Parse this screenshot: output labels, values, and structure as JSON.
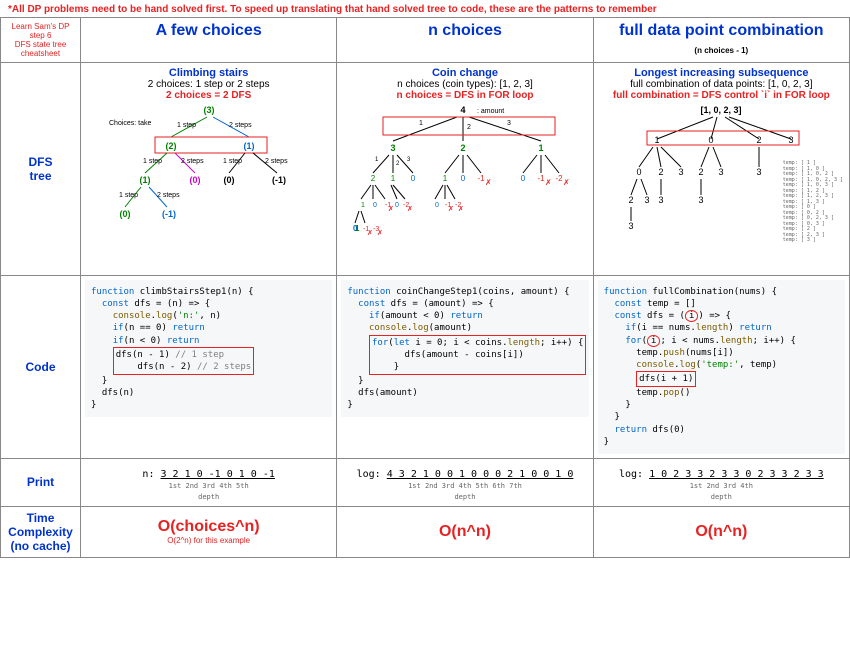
{
  "banner": "*All DP problems need to be hand solved first. To speed up translating that hand solved tree to code, these are the patterns to remember",
  "corner": "Learn Sam's DP step 6\nDFS state tree cheatsheet",
  "columns": [
    {
      "head": "A few choices",
      "sub": ""
    },
    {
      "head": "n choices",
      "sub": ""
    },
    {
      "head": "full data point combination",
      "sub": "(n choices - 1)"
    }
  ],
  "rows": {
    "dfs": "DFS\ntree",
    "code": "Code",
    "print": "Print",
    "tc": "Time\nComplexity\n(no cache)"
  },
  "problems": {
    "few": {
      "title": "Climbing stairs",
      "sub": "2 choices: 1 step or 2 steps",
      "rule": "2 choices = 2 DFS",
      "root": "(3)",
      "choices_label": "Choices: take",
      "edge_labels": [
        "1 step",
        "2 steps"
      ],
      "tree_colors": {
        "ok": "#008000",
        "fail": "#0066cc",
        "alt": "#cc00cc"
      },
      "code": "function climbStairsStep1(n) {\n  const dfs = (n) => {\n    console.log('n:', n)\n    if(n == 0) return\n    if(n < 0) return\n    [BOX]dfs(n - 1) // 1 step\n    dfs(n - 2) // 2 steps[/BOX]\n  }\n  dfs(n)\n}",
      "print_prefix": "n:",
      "print_seq": "3 2 1 0 -1 0 1 0 -1",
      "print_labels": "    1st 2nd 3rd       4th 5th",
      "print_sub": "depth",
      "tc": "O(choices^n)",
      "tc_sub": "O(2^n) for this example"
    },
    "n": {
      "title": "Coin change",
      "sub": "n choices (coin types): [1, 2, 3]",
      "rule": "n choices = DFS in FOR loop",
      "root": "4 : amount",
      "tree_colors": {
        "ok": "#008000",
        "fail": "#e62222"
      },
      "code": "function coinChangeStep1(coins, amount) {\n  const dfs = (amount) => {\n    if(amount < 0) return\n    console.log(amount)\n    [BOX]for(let i = 0; i < coins.length; i++) {\n      dfs(amount - coins[i])\n    }[/BOX]\n  }\n  dfs(amount)\n}",
      "print_prefix": "log:",
      "print_seq": "4 3 2 1 0  0 1 0 0  0 2 1 0 0  1 0",
      "print_labels": "1st 2nd 3rd 4th   5th 6th 7th",
      "print_sub": "depth",
      "tc": "O(n^n)"
    },
    "full": {
      "title": "Longest increasing subsequence",
      "sub": "full combination of data points: [1, 0, 2, 3]",
      "rule": "full combination = DFS control `i` in FOR loop",
      "root": "[1, 0, 2, 3]",
      "tree_colors": {
        "txt": "#000"
      },
      "code": "function fullCombination(nums) {\n  const temp = []\n  const dfs = ([CIRCLE]i[/CIRCLE]) => {\n    if(i == nums.length) return\n    for([CIRCLE]i[/CIRCLE]; i < nums.length; i++) {\n      temp.push(nums[i])\n      console.log('temp:', temp)\n      [BOX]dfs(i + 1)[/BOX]\n      temp.pop()\n    }\n  }\n  return dfs(0)\n}",
      "print_prefix": "log:",
      "print_seq": "1 0 2 3  3 2 3  3 0 2 3  3 2 3  3",
      "print_labels": "1st 2nd 3rd   4th",
      "print_sub": "depth",
      "tc": "O(n^n)",
      "temps": "temp: [ 1 ]\ntemp: [ 1, 0 ]\ntemp: [ 1, 0, 2 ]\ntemp: [ 1, 0, 2, 3 ]\ntemp: [ 1, 0, 3 ]\ntemp: [ 1, 2 ]\ntemp: [ 1, 2, 3 ]\ntemp: [ 1, 3 ]\ntemp: [ 0 ]\ntemp: [ 0, 2 ]\ntemp: [ 0, 2, 3 ]\ntemp: [ 0, 3 ]\ntemp: [ 2 ]\ntemp: [ 2, 3 ]\ntemp: [ 3 ]"
    }
  },
  "style": {
    "red": "#e62222",
    "blue": "#0033cc",
    "green": "#008000",
    "magenta": "#cc00cc",
    "codebg": "#f6f7f8"
  }
}
